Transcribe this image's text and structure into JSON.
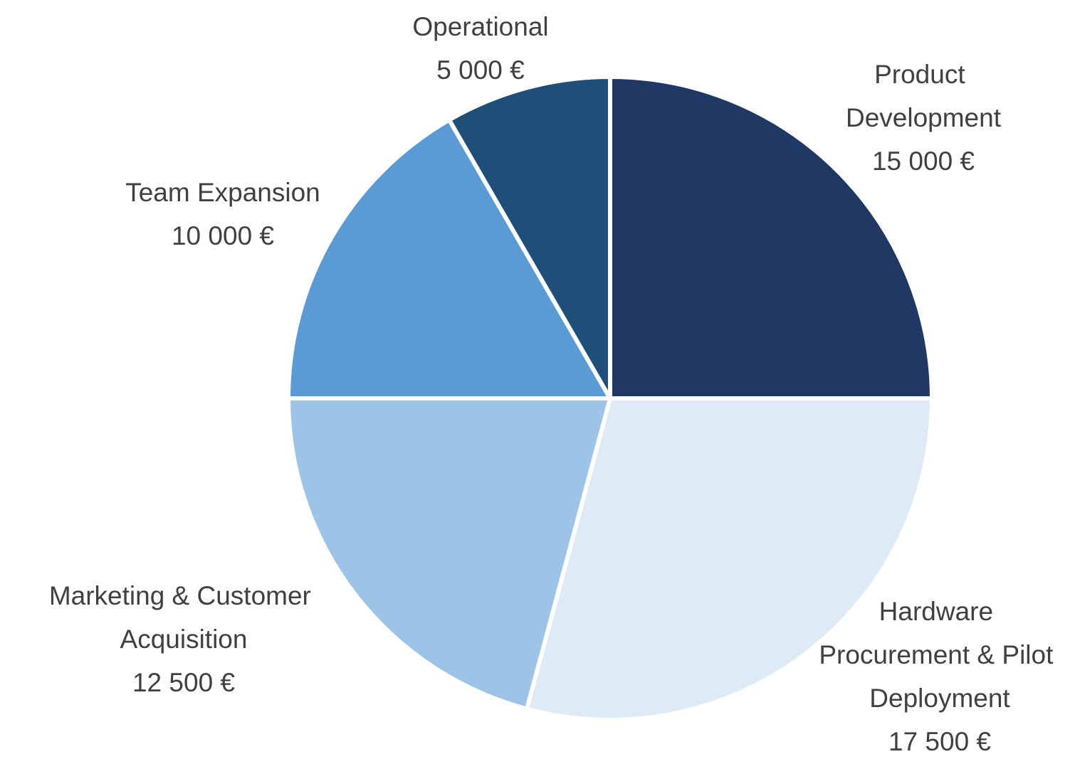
{
  "chart_data": {
    "type": "pie",
    "categories": [
      "Product Development",
      "Hardware Procurement & Pilot Deployment",
      "Marketing & Customer Acquisition",
      "Team Expansion",
      "Operational"
    ],
    "values": [
      15000,
      17500,
      12500,
      10000,
      5000
    ],
    "value_labels": [
      "15 000 €",
      "17 500 €",
      "12 500 €",
      "10 000 €",
      "5 000 €"
    ],
    "colors": [
      "#203864",
      "#deebf7",
      "#9dc3e6",
      "#5b9bd5",
      "#1f4e79"
    ]
  }
}
